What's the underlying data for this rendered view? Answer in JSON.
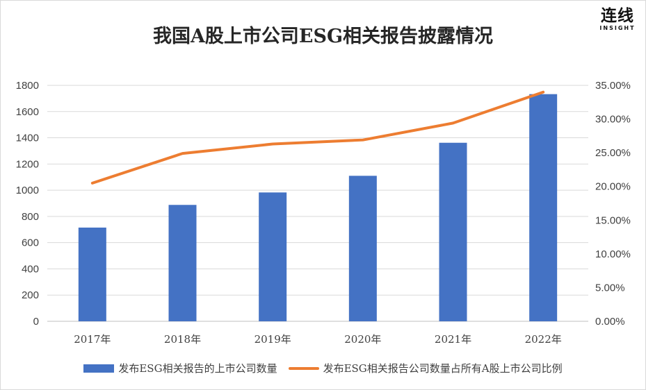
{
  "logo": {
    "main": "连线",
    "sub": "INSIGHT"
  },
  "chart_data": {
    "type": "bar",
    "title": "我国A股上市公司ESG相关报告披露情况",
    "categories": [
      "2017年",
      "2018年",
      "2019年",
      "2020年",
      "2021年",
      "2022年"
    ],
    "series": [
      {
        "name": "发布ESG相关报告的上市公司数量",
        "type": "bar",
        "axis": "left",
        "color": "#4472c4",
        "values": [
          715,
          888,
          983,
          1110,
          1362,
          1733
        ]
      },
      {
        "name": "发布ESG相关报告公司数量占所有A股上市公司比例",
        "type": "line",
        "axis": "right",
        "color": "#ed7d31",
        "values": [
          0.205,
          0.249,
          0.263,
          0.269,
          0.294,
          0.34
        ]
      }
    ],
    "y_left": {
      "min": 0,
      "max": 1800,
      "ticks": [
        "0",
        "200",
        "400",
        "600",
        "800",
        "1000",
        "1200",
        "1400",
        "1600",
        "1800"
      ]
    },
    "y_right": {
      "min": 0,
      "max": 0.35,
      "ticks": [
        "0.00%",
        "5.00%",
        "10.00%",
        "15.00%",
        "20.00%",
        "25.00%",
        "30.00%",
        "35.00%"
      ]
    },
    "grid": true,
    "legend": "bottom"
  }
}
